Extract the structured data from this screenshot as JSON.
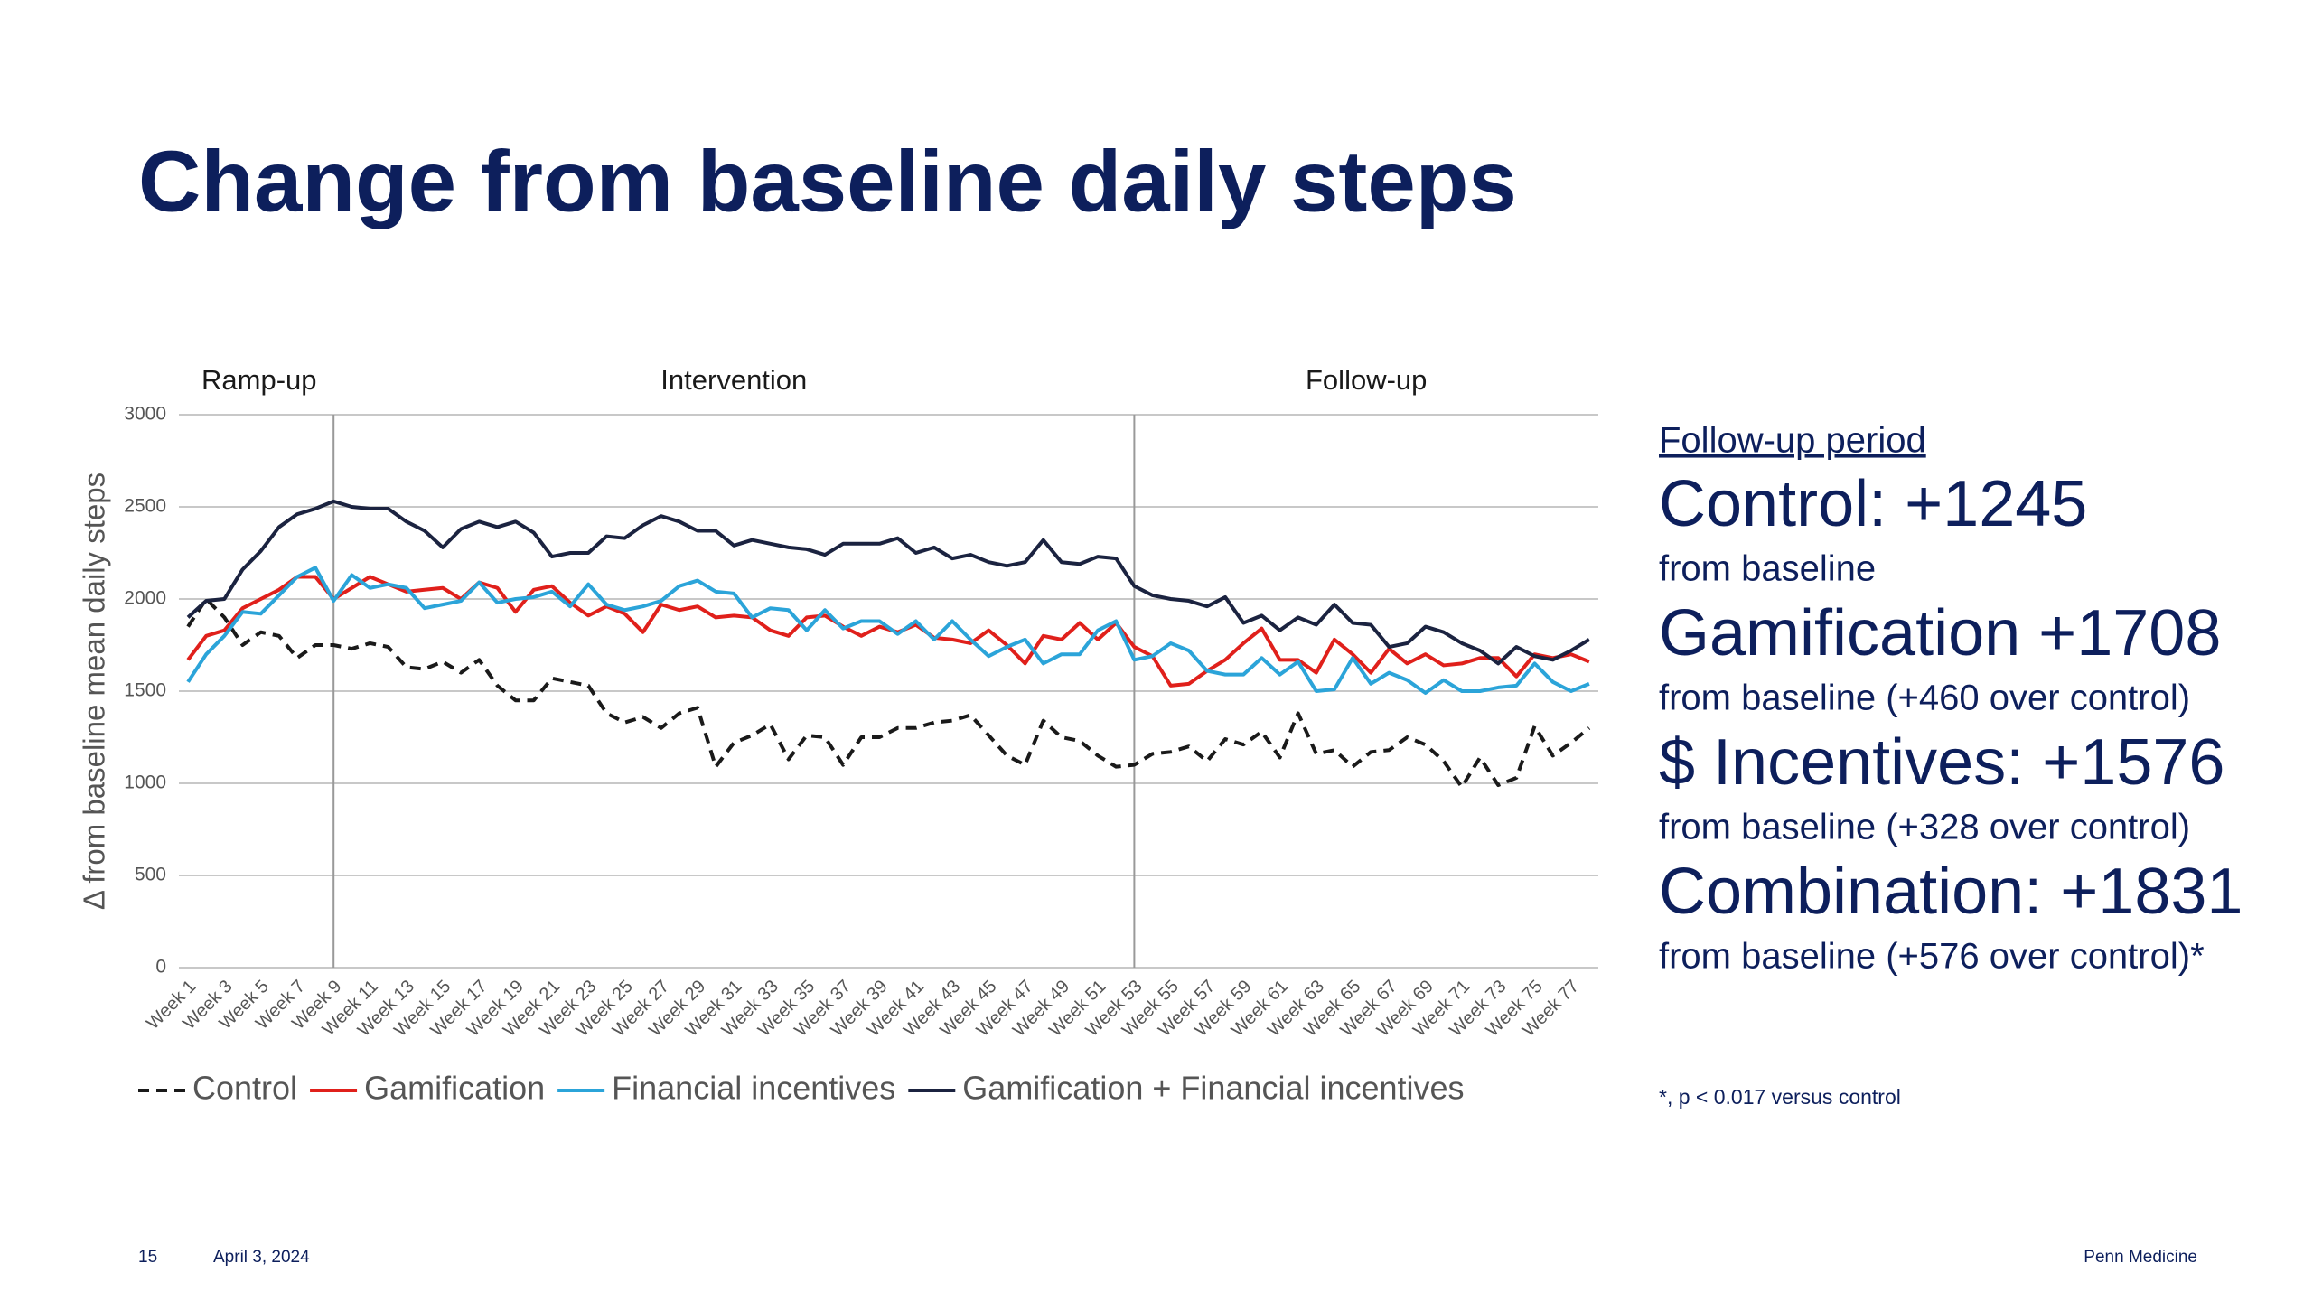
{
  "slide": {
    "title": "Change from baseline daily steps",
    "panel": {
      "heading": "Follow-up period",
      "items": [
        {
          "headline": "Control: +1245",
          "note": "from baseline"
        },
        {
          "headline": "Gamification +1708",
          "note": "from baseline (+460 over control)"
        },
        {
          "headline": "$ Incentives: +1576",
          "note": "from baseline (+328 over control)"
        },
        {
          "headline": "Combination: +1831",
          "note": "from baseline (+576 over control)*"
        }
      ],
      "footnote": "*, p < 0.017 versus control"
    },
    "footer": {
      "page": "15",
      "date": "April 3, 2024",
      "brand": "Penn Medicine"
    }
  },
  "chart_data": {
    "type": "line",
    "y_label": "Δ from baseline mean daily steps",
    "phases": [
      "Ramp-up",
      "Intervention",
      "Follow-up"
    ],
    "dividers": [
      "Week 9",
      "Week 53"
    ],
    "categories": [
      "Week 1",
      null,
      "Week 3",
      null,
      "Week 5",
      null,
      "Week 7",
      null,
      "Week 9",
      null,
      "Week 11",
      null,
      "Week 13",
      null,
      "Week 15",
      null,
      "Week 17",
      null,
      "Week 19",
      null,
      "Week 21",
      null,
      "Week 23",
      null,
      "Week 25",
      null,
      "Week 27",
      null,
      "Week 29",
      null,
      "Week 31",
      null,
      "Week 33",
      null,
      "Week 35",
      null,
      "Week 37",
      null,
      "Week 39",
      null,
      "Week 41",
      null,
      "Week 43",
      null,
      "Week 45",
      null,
      "Week 47",
      null,
      "Week 49",
      null,
      "Week 51",
      null,
      "Week 53",
      null,
      "Week 55",
      null,
      "Week 57",
      null,
      "Week 59",
      null,
      "Week 61",
      null,
      "Week 63",
      null,
      "Week 65",
      null,
      "Week 67",
      null,
      "Week 69",
      null,
      "Week 71",
      null,
      "Week 73",
      null,
      "Week 75",
      null,
      "Week 77",
      null
    ],
    "series": [
      {
        "name": "Control",
        "color": "#1a1a1a",
        "line_style": "dashed",
        "values": [
          1850,
          2000,
          1900,
          1750,
          1820,
          1800,
          1680,
          1750,
          1750,
          1730,
          1760,
          1740,
          1630,
          1620,
          1660,
          1600,
          1670,
          1530,
          1450,
          1450,
          1570,
          1550,
          1530,
          1380,
          1330,
          1360,
          1300,
          1380,
          1410,
          1090,
          1220,
          1260,
          1320,
          1130,
          1260,
          1250,
          1100,
          1250,
          1250,
          1300,
          1300,
          1330,
          1340,
          1370,
          1260,
          1150,
          1100,
          1340,
          1250,
          1230,
          1150,
          1090,
          1100,
          1160,
          1170,
          1200,
          1120,
          1240,
          1210,
          1280,
          1140,
          1380,
          1160,
          1180,
          1090,
          1170,
          1180,
          1250,
          1210,
          1120,
          980,
          1140,
          990,
          1030,
          1310,
          1150,
          1220,
          1300
        ]
      },
      {
        "name": "Gamification",
        "color": "#e0201b",
        "line_style": "solid",
        "values": [
          1670,
          1800,
          1830,
          1950,
          2000,
          2050,
          2120,
          2120,
          2000,
          2060,
          2120,
          2080,
          2040,
          2050,
          2060,
          2000,
          2090,
          2060,
          1930,
          2050,
          2070,
          1980,
          1910,
          1960,
          1920,
          1820,
          1970,
          1940,
          1960,
          1900,
          1910,
          1900,
          1830,
          1800,
          1900,
          1910,
          1850,
          1800,
          1850,
          1820,
          1860,
          1790,
          1780,
          1760,
          1830,
          1750,
          1650,
          1800,
          1780,
          1870,
          1780,
          1870,
          1740,
          1690,
          1530,
          1540,
          1610,
          1670,
          1760,
          1840,
          1670,
          1670,
          1600,
          1780,
          1700,
          1600,
          1730,
          1650,
          1700,
          1640,
          1650,
          1680,
          1680,
          1580,
          1700,
          1680,
          1700,
          1660
        ]
      },
      {
        "name": "Financial incentives",
        "color": "#2ba4d9",
        "line_style": "solid",
        "values": [
          1550,
          1700,
          1800,
          1930,
          1920,
          2020,
          2120,
          2170,
          1990,
          2130,
          2060,
          2080,
          2060,
          1950,
          1970,
          1990,
          2090,
          1980,
          2000,
          2010,
          2040,
          1960,
          2080,
          1970,
          1940,
          1960,
          1990,
          2070,
          2100,
          2040,
          2030,
          1900,
          1950,
          1940,
          1830,
          1940,
          1840,
          1880,
          1880,
          1810,
          1880,
          1780,
          1880,
          1780,
          1690,
          1740,
          1780,
          1650,
          1700,
          1700,
          1830,
          1880,
          1670,
          1690,
          1760,
          1720,
          1610,
          1590,
          1590,
          1680,
          1590,
          1660,
          1500,
          1510,
          1680,
          1540,
          1600,
          1560,
          1490,
          1560,
          1500,
          1500,
          1520,
          1530,
          1650,
          1550,
          1500,
          1540
        ]
      },
      {
        "name": "Gamification + Financial incentives",
        "color": "#1b2340",
        "line_style": "solid",
        "values": [
          1900,
          1990,
          2000,
          2160,
          2260,
          2390,
          2460,
          2490,
          2530,
          2500,
          2490,
          2490,
          2420,
          2370,
          2280,
          2380,
          2420,
          2390,
          2420,
          2360,
          2230,
          2250,
          2250,
          2340,
          2330,
          2400,
          2450,
          2420,
          2370,
          2370,
          2290,
          2320,
          2300,
          2280,
          2270,
          2240,
          2300,
          2300,
          2300,
          2330,
          2250,
          2280,
          2220,
          2240,
          2200,
          2180,
          2200,
          2320,
          2200,
          2190,
          2230,
          2220,
          2070,
          2020,
          2000,
          1990,
          1960,
          2010,
          1870,
          1910,
          1830,
          1900,
          1860,
          1970,
          1870,
          1860,
          1740,
          1760,
          1850,
          1820,
          1760,
          1720,
          1650,
          1740,
          1690,
          1670,
          1720,
          1780
        ]
      }
    ],
    "ylim": [
      0,
      3000
    ],
    "yticks": [
      0,
      500,
      1000,
      1500,
      2000,
      2500,
      3000
    ],
    "grid": true,
    "legend": "bottom"
  }
}
